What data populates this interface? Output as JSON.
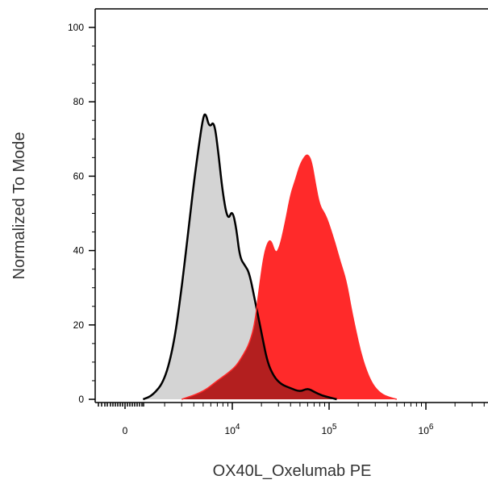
{
  "chart_data": {
    "type": "area",
    "xlabel": "OX40L_Oxelumab PE",
    "ylabel": "Normalized To Mode",
    "xscale": "biexponential",
    "ylim": [
      0,
      105
    ],
    "y_ticks": [
      0,
      20,
      40,
      60,
      80,
      100
    ],
    "x_ticks": [
      {
        "value": 0,
        "base": "0",
        "exp": ""
      },
      {
        "value": 10000,
        "base": "10",
        "exp": "4"
      },
      {
        "value": 100000,
        "base": "10",
        "exp": "5"
      },
      {
        "value": 1000000,
        "base": "10",
        "exp": "6"
      }
    ],
    "series": [
      {
        "fill": "#d4d4d4",
        "stroke": "#000000",
        "points": [
          [
            800,
            0
          ],
          [
            1500,
            1
          ],
          [
            2000,
            5
          ],
          [
            2500,
            15
          ],
          [
            3000,
            30
          ],
          [
            3500,
            45
          ],
          [
            4000,
            58
          ],
          [
            4500,
            68
          ],
          [
            5000,
            76
          ],
          [
            5300,
            77
          ],
          [
            5800,
            73
          ],
          [
            6500,
            75
          ],
          [
            7200,
            66
          ],
          [
            8000,
            55
          ],
          [
            9000,
            48
          ],
          [
            10000,
            51
          ],
          [
            11000,
            46
          ],
          [
            12000,
            38
          ],
          [
            13500,
            36
          ],
          [
            15000,
            34
          ],
          [
            17000,
            27
          ],
          [
            20000,
            18
          ],
          [
            23000,
            10
          ],
          [
            27000,
            6
          ],
          [
            32000,
            4
          ],
          [
            40000,
            3
          ],
          [
            50000,
            2
          ],
          [
            60000,
            3
          ],
          [
            70000,
            2
          ],
          [
            85000,
            1
          ],
          [
            100000,
            0.5
          ],
          [
            120000,
            0
          ]
        ]
      },
      {
        "fill": "#ff2a2a",
        "stroke": "#ff2a2a",
        "overlap_fill": "#b31f1f",
        "points": [
          [
            3000,
            0
          ],
          [
            5000,
            2
          ],
          [
            7000,
            5
          ],
          [
            9000,
            7
          ],
          [
            11000,
            9
          ],
          [
            13000,
            12
          ],
          [
            15000,
            15
          ],
          [
            17000,
            20
          ],
          [
            19000,
            30
          ],
          [
            21000,
            38
          ],
          [
            23000,
            42
          ],
          [
            25000,
            43
          ],
          [
            28000,
            39
          ],
          [
            31000,
            41
          ],
          [
            35000,
            47
          ],
          [
            40000,
            55
          ],
          [
            45000,
            59
          ],
          [
            50000,
            63
          ],
          [
            55000,
            65
          ],
          [
            60000,
            66
          ],
          [
            66000,
            64
          ],
          [
            72000,
            58
          ],
          [
            80000,
            52
          ],
          [
            90000,
            50
          ],
          [
            100000,
            47
          ],
          [
            115000,
            42
          ],
          [
            130000,
            37
          ],
          [
            150000,
            32
          ],
          [
            170000,
            24
          ],
          [
            190000,
            18
          ],
          [
            210000,
            13
          ],
          [
            240000,
            8
          ],
          [
            280000,
            4
          ],
          [
            340000,
            1.5
          ],
          [
            420000,
            0.5
          ],
          [
            500000,
            0
          ]
        ]
      }
    ]
  }
}
